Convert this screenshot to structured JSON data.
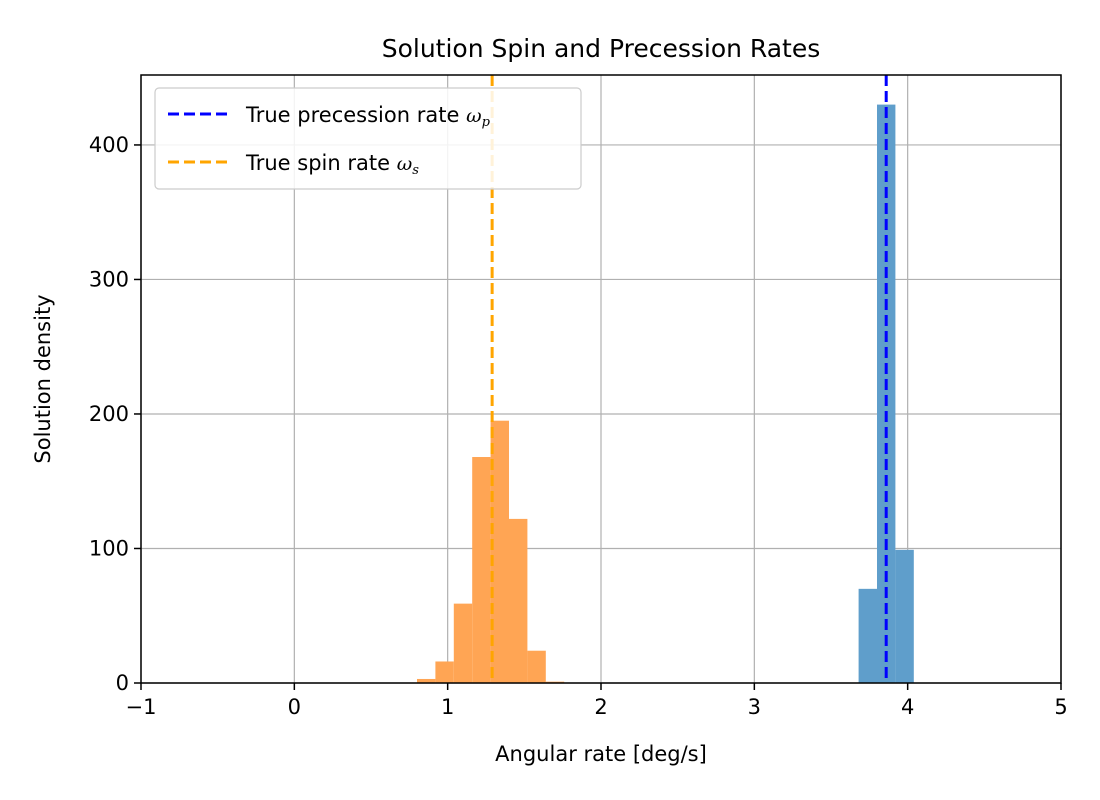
{
  "chart_data": {
    "type": "bar",
    "title": "Solution Spin and Precession Rates",
    "xlabel": "Angular rate [deg/s]",
    "ylabel": "Solution density",
    "xlim": [
      -1,
      5
    ],
    "ylim": [
      0,
      452
    ],
    "xticks": [
      -1,
      0,
      1,
      2,
      3,
      4,
      5
    ],
    "xtick_labels": [
      "−1",
      "0",
      "1",
      "2",
      "3",
      "4",
      "5"
    ],
    "yticks": [
      0,
      100,
      200,
      300,
      400
    ],
    "ytick_labels": [
      "0",
      "100",
      "200",
      "300",
      "400"
    ],
    "grid": true,
    "legend_position": "top-left",
    "series": [
      {
        "color": "#5f9ecb",
        "bins": [
          {
            "x0": 3.68,
            "x1": 3.8,
            "value": 70
          },
          {
            "x0": 3.8,
            "x1": 3.92,
            "value": 430
          },
          {
            "x0": 3.92,
            "x1": 4.04,
            "value": 99
          }
        ]
      },
      {
        "color": "#ffa554",
        "bins": [
          {
            "x0": 0.8,
            "x1": 0.92,
            "value": 3
          },
          {
            "x0": 0.92,
            "x1": 1.04,
            "value": 16
          },
          {
            "x0": 1.04,
            "x1": 1.16,
            "value": 59
          },
          {
            "x0": 1.16,
            "x1": 1.28,
            "value": 168
          },
          {
            "x0": 1.28,
            "x1": 1.4,
            "value": 195
          },
          {
            "x0": 1.4,
            "x1": 1.52,
            "value": 122
          },
          {
            "x0": 1.52,
            "x1": 1.64,
            "value": 24
          },
          {
            "x0": 1.64,
            "x1": 1.76,
            "value": 1
          }
        ]
      }
    ],
    "reference_lines": [
      {
        "x": 3.86,
        "color": "#0000ff",
        "style": "dashed",
        "label_text": "True precession rate ",
        "symbol": "ω",
        "subscript": "p"
      },
      {
        "x": 1.29,
        "color": "#ffa500",
        "style": "dashed",
        "label_text": "True spin rate ",
        "symbol": "ω",
        "subscript": "s"
      }
    ]
  }
}
